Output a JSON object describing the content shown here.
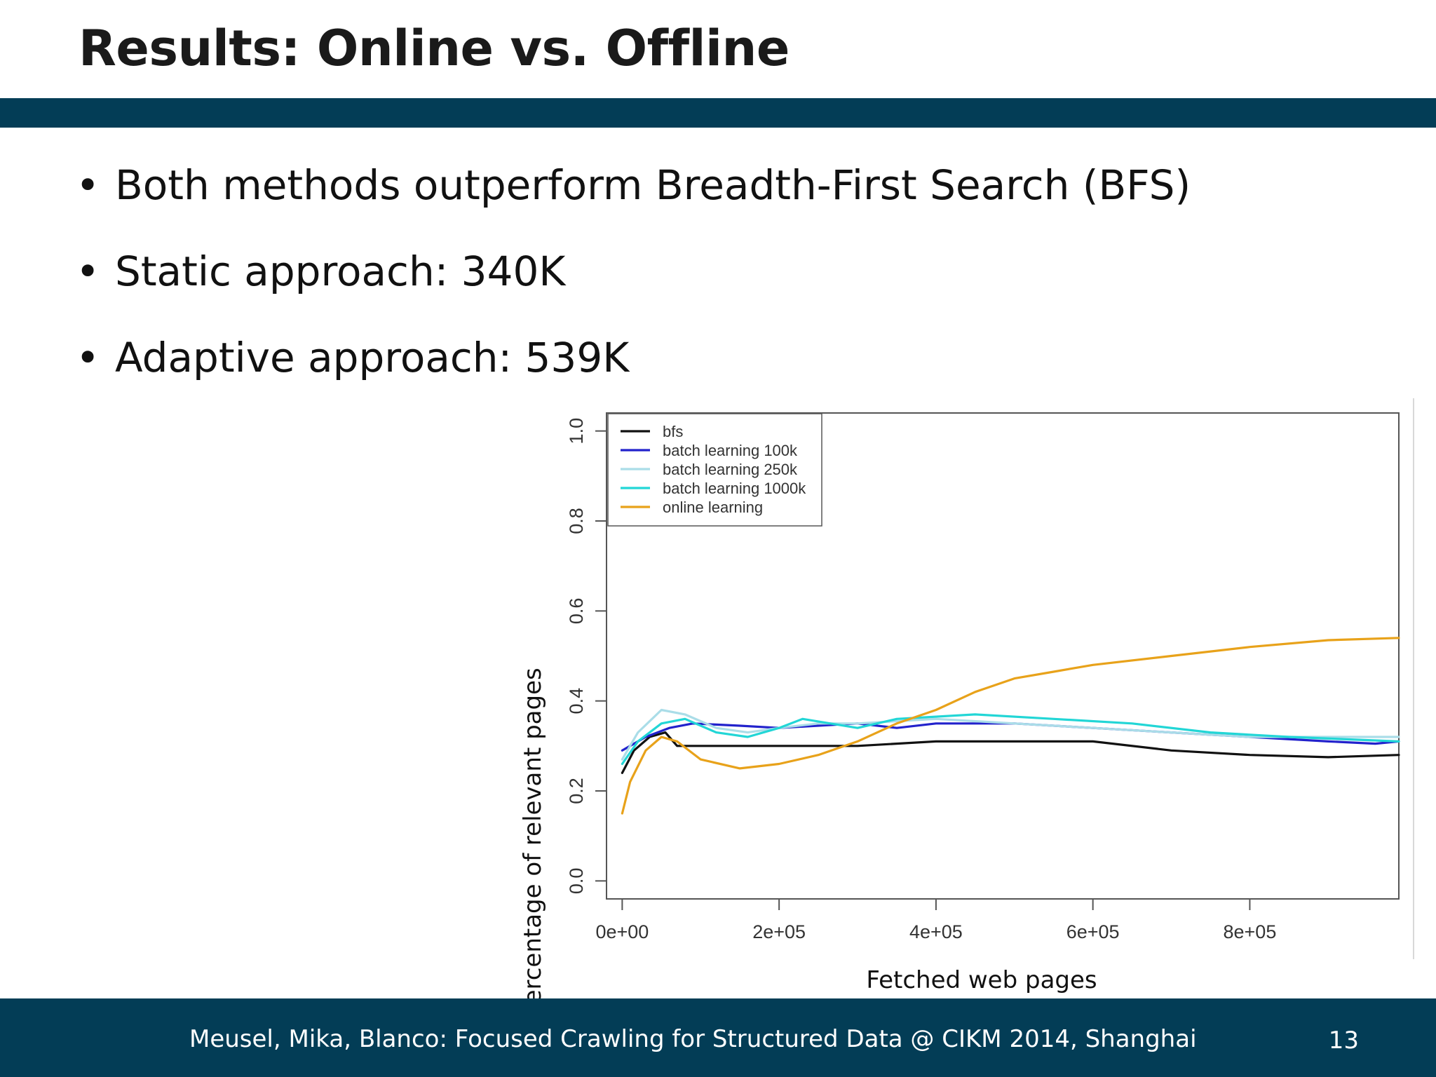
{
  "slide": {
    "title": "Results: Online vs. Offline",
    "bullets": [
      "Both methods outperform Breadth-First Search (BFS)",
      "Static approach: 340K",
      "Adaptive approach: 539K"
    ],
    "colors": {
      "bar": "#033d56",
      "footer": "#033d56"
    }
  },
  "footer": {
    "text": "Meusel, Mika, Blanco: Focused Crawling for Structured Data @ CIKM 2014, Shanghai",
    "page_number": "13"
  },
  "chart_data": {
    "type": "line",
    "title": "",
    "xlabel": "Fetched web pages",
    "ylabel": "Percentage of relevant pages",
    "xlim": [
      -20000,
      990000
    ],
    "ylim": [
      -0.04,
      1.04
    ],
    "x_ticks": [
      0,
      200000,
      400000,
      600000,
      800000
    ],
    "x_tick_labels": [
      "0e+00",
      "2e+05",
      "4e+05",
      "6e+05",
      "8e+05"
    ],
    "y_ticks": [
      0.0,
      0.2,
      0.4,
      0.6,
      0.8,
      1.0
    ],
    "y_tick_labels": [
      "0.0",
      "0.2",
      "0.4",
      "0.6",
      "0.8",
      "1.0"
    ],
    "grid": false,
    "legend_position": "top-left",
    "series": [
      {
        "name": "bfs",
        "color": "#111111",
        "points": [
          [
            0,
            0.24
          ],
          [
            15000,
            0.29
          ],
          [
            35000,
            0.32
          ],
          [
            55000,
            0.33
          ],
          [
            70000,
            0.3
          ],
          [
            100000,
            0.3
          ],
          [
            150000,
            0.3
          ],
          [
            200000,
            0.3
          ],
          [
            300000,
            0.3
          ],
          [
            400000,
            0.31
          ],
          [
            500000,
            0.31
          ],
          [
            600000,
            0.31
          ],
          [
            700000,
            0.29
          ],
          [
            800000,
            0.28
          ],
          [
            900000,
            0.275
          ],
          [
            990000,
            0.28
          ]
        ]
      },
      {
        "name": "batch learning 100k",
        "color": "#2222cc",
        "points": [
          [
            0,
            0.29
          ],
          [
            30000,
            0.32
          ],
          [
            60000,
            0.34
          ],
          [
            90000,
            0.35
          ],
          [
            150000,
            0.345
          ],
          [
            200000,
            0.34
          ],
          [
            300000,
            0.35
          ],
          [
            350000,
            0.34
          ],
          [
            400000,
            0.35
          ],
          [
            500000,
            0.35
          ],
          [
            600000,
            0.34
          ],
          [
            700000,
            0.33
          ],
          [
            800000,
            0.32
          ],
          [
            900000,
            0.31
          ],
          [
            960000,
            0.305
          ],
          [
            990000,
            0.31
          ]
        ]
      },
      {
        "name": "batch learning 250k",
        "color": "#aadde8",
        "points": [
          [
            0,
            0.27
          ],
          [
            20000,
            0.33
          ],
          [
            50000,
            0.38
          ],
          [
            80000,
            0.37
          ],
          [
            120000,
            0.34
          ],
          [
            160000,
            0.33
          ],
          [
            200000,
            0.34
          ],
          [
            250000,
            0.35
          ],
          [
            300000,
            0.35
          ],
          [
            400000,
            0.36
          ],
          [
            500000,
            0.35
          ],
          [
            600000,
            0.34
          ],
          [
            700000,
            0.33
          ],
          [
            800000,
            0.32
          ],
          [
            900000,
            0.32
          ],
          [
            990000,
            0.32
          ]
        ]
      },
      {
        "name": "batch learning 1000k",
        "color": "#22d6d6",
        "points": [
          [
            0,
            0.26
          ],
          [
            20000,
            0.31
          ],
          [
            50000,
            0.35
          ],
          [
            80000,
            0.36
          ],
          [
            120000,
            0.33
          ],
          [
            160000,
            0.32
          ],
          [
            200000,
            0.34
          ],
          [
            230000,
            0.36
          ],
          [
            300000,
            0.34
          ],
          [
            350000,
            0.36
          ],
          [
            450000,
            0.37
          ],
          [
            550000,
            0.36
          ],
          [
            650000,
            0.35
          ],
          [
            750000,
            0.33
          ],
          [
            850000,
            0.32
          ],
          [
            990000,
            0.31
          ]
        ]
      },
      {
        "name": "online learning",
        "color": "#e8a21a",
        "points": [
          [
            0,
            0.15
          ],
          [
            10000,
            0.22
          ],
          [
            30000,
            0.29
          ],
          [
            50000,
            0.32
          ],
          [
            70000,
            0.31
          ],
          [
            100000,
            0.27
          ],
          [
            150000,
            0.25
          ],
          [
            200000,
            0.26
          ],
          [
            250000,
            0.28
          ],
          [
            300000,
            0.31
          ],
          [
            350000,
            0.35
          ],
          [
            400000,
            0.38
          ],
          [
            450000,
            0.42
          ],
          [
            500000,
            0.45
          ],
          [
            550000,
            0.465
          ],
          [
            600000,
            0.48
          ],
          [
            700000,
            0.5
          ],
          [
            800000,
            0.52
          ],
          [
            900000,
            0.535
          ],
          [
            990000,
            0.54
          ]
        ]
      }
    ]
  }
}
